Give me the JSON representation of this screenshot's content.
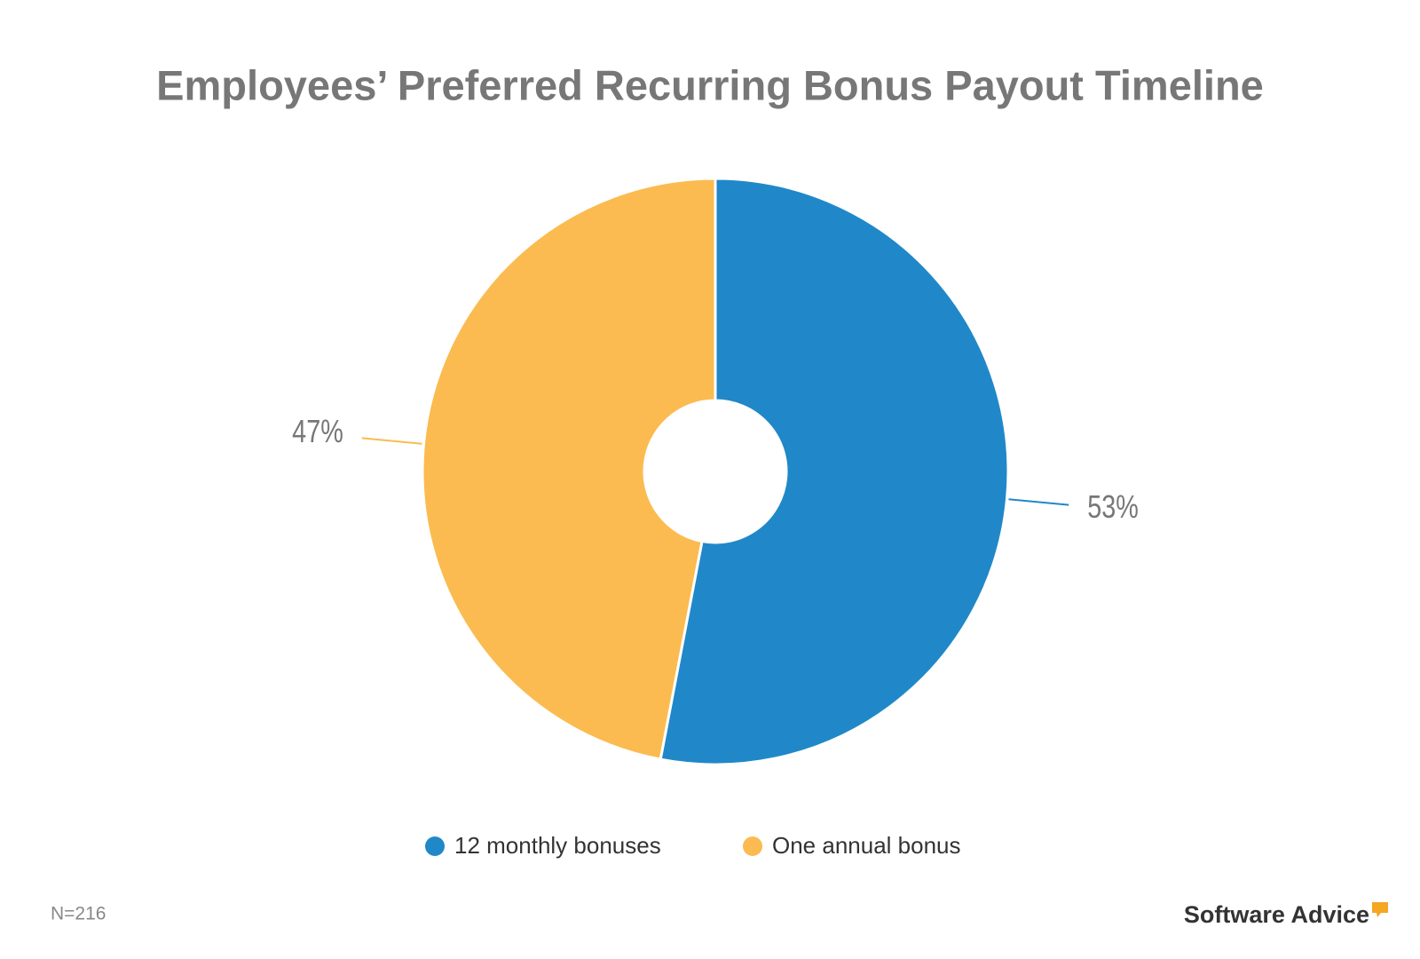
{
  "chart_data": {
    "type": "pie",
    "title": "Employees’ Preferred Recurring Bonus Payout Timeline",
    "categories": [
      "12 monthly bonuses",
      "One annual bonus"
    ],
    "values": [
      53,
      47
    ],
    "value_labels": [
      "53%",
      "47%"
    ],
    "colors": [
      "#2088c8",
      "#fbbb50"
    ],
    "note": "N=216",
    "brand": "Software Advice"
  }
}
